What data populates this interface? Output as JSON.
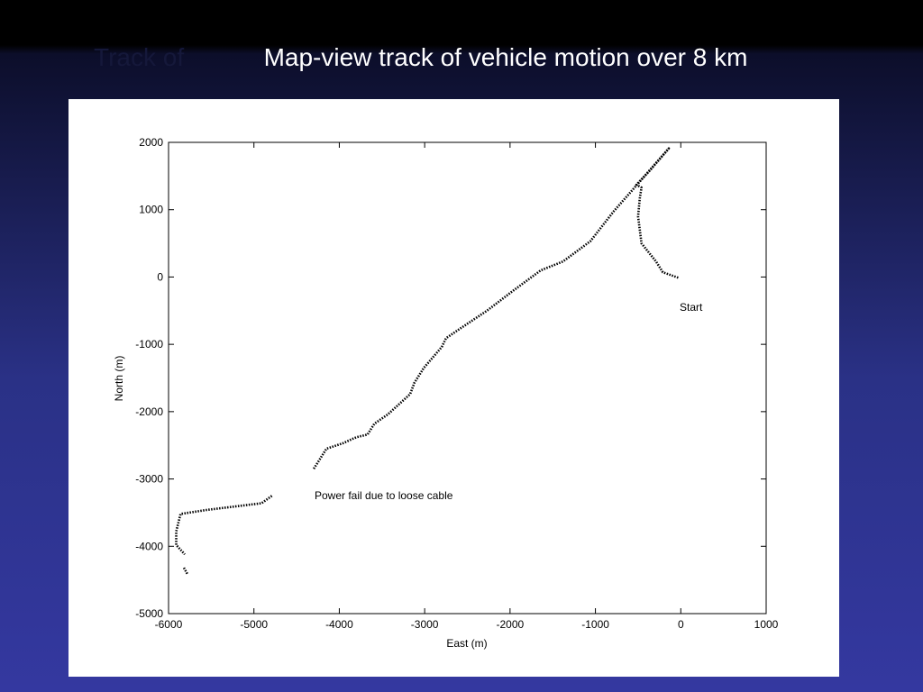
{
  "slide": {
    "ghost_text": "Track of",
    "title": "Map-view track of vehicle motion over 8 km"
  },
  "chart_data": {
    "type": "line",
    "x_label": "East (m)",
    "y_label": "North (m)",
    "annotations": [
      "Start",
      "Power fail due to loose cable"
    ],
    "color": "#000000",
    "x": [
      -30,
      -210,
      -290,
      -460,
      -500,
      -480,
      -460,
      -520,
      -370,
      -140,
      -790,
      -1060,
      -1380,
      -1640,
      -1960,
      -2270,
      -2590,
      -2750,
      -2800,
      -3010,
      -3120,
      -3170,
      -3430,
      -3590,
      -3670,
      -3800,
      -3960,
      -4150,
      -4300,
      null,
      -4790,
      -4910,
      -5230,
      -5550,
      -5860,
      -5910,
      -5910,
      -5810,
      null,
      -5820,
      -5780
    ],
    "values": [
      -10,
      70,
      230,
      500,
      900,
      1170,
      1330,
      1370,
      1570,
      1910,
      970,
      530,
      230,
      100,
      -200,
      -500,
      -770,
      -910,
      -1040,
      -1350,
      -1570,
      -1740,
      -2040,
      -2180,
      -2340,
      -2380,
      -2470,
      -2550,
      -2850,
      null,
      -3250,
      -3360,
      -3410,
      -3460,
      -3520,
      -3780,
      -3980,
      -4120,
      null,
      -4320,
      -4410
    ],
    "xlim": [
      -6000,
      1000
    ],
    "ylim": [
      -5000,
      2000
    ],
    "xticks": [
      -6000,
      -5000,
      -4000,
      -3000,
      -2000,
      -1000,
      0,
      1000
    ],
    "yticks": [
      -5000,
      -4000,
      -3000,
      -2000,
      -1000,
      0,
      1000,
      2000
    ]
  }
}
